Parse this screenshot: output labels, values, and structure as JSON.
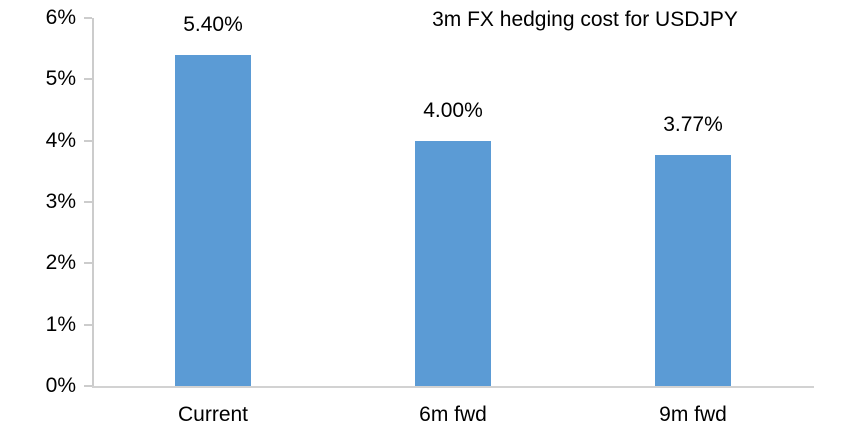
{
  "chart": {
    "bar_color": "#5b9bd5",
    "axis_color": "#cccccc",
    "text_color": "#000000",
    "background_color": "#ffffff"
  },
  "chart_data": {
    "type": "bar",
    "title": "3m FX hedging cost for USDJPY",
    "categories": [
      "Current",
      "6m fwd",
      "9m fwd"
    ],
    "values": [
      5.4,
      4.0,
      3.77
    ],
    "value_labels": [
      "5.40%",
      "4.00%",
      "3.77%"
    ],
    "y_tick_labels": [
      "6%",
      "5%",
      "4%",
      "3%",
      "2%",
      "1%",
      "0%"
    ],
    "xlabel": "",
    "ylabel": "",
    "ylim": [
      0,
      6
    ],
    "grid": false,
    "legend": null,
    "data_labels_position": "above-bar",
    "title_position": "top-center-right"
  }
}
